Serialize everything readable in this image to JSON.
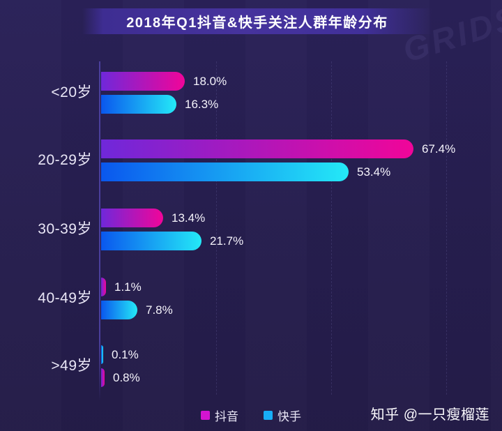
{
  "title": "2018年Q1抖音&快手关注人群年龄分布",
  "watermarks": {
    "grids": "GRIDS",
    "zhihu": "知乎 @一只瘦榴莲"
  },
  "colors": {
    "background_top": "#2a2158",
    "background_bottom": "#241c48",
    "title_banner": "#46339d",
    "axis_line": "#4b3f9c",
    "category_text": "#e9e6f6",
    "value_text": "#f5f3fb",
    "title_text": "#ffffff"
  },
  "series_colors": {
    "douyin": {
      "label": "抖音",
      "gradient_from": "#6f28da",
      "gradient_to": "#f10599",
      "legend_swatch": "#d414d0"
    },
    "kuaishou": {
      "label": "快手",
      "gradient_from": "#0a57ee",
      "gradient_to": "#24e9f7",
      "legend_swatch": "#18aef7"
    }
  },
  "chart_data": {
    "type": "bar",
    "orientation": "horizontal",
    "title": "2018年Q1抖音&快手关注人群年龄分布",
    "categories": [
      "<20岁",
      "20-29岁",
      "30-39岁",
      "40-49岁",
      ">49岁"
    ],
    "series": [
      {
        "name": "抖音",
        "values": [
          18.0,
          67.4,
          13.4,
          1.1,
          0.8
        ]
      },
      {
        "name": "快手",
        "values": [
          16.3,
          53.4,
          21.7,
          7.8,
          0.1
        ]
      }
    ],
    "value_suffix": "%",
    "xlim": [
      0,
      100
    ],
    "legend_position": "bottom-center",
    "grid": "faint dashed vertical gridlines, no x-axis tick labels",
    "groups": [
      {
        "label": "<20岁",
        "bars": [
          {
            "series": "douyin",
            "value": 18.0,
            "display": "18.0%"
          },
          {
            "series": "kuaishou",
            "value": 16.3,
            "display": "16.3%"
          }
        ]
      },
      {
        "label": "20-29岁",
        "bars": [
          {
            "series": "douyin",
            "value": 67.4,
            "display": "67.4%"
          },
          {
            "series": "kuaishou",
            "value": 53.4,
            "display": "53.4%"
          }
        ]
      },
      {
        "label": "30-39岁",
        "bars": [
          {
            "series": "douyin",
            "value": 13.4,
            "display": "13.4%"
          },
          {
            "series": "kuaishou",
            "value": 21.7,
            "display": "21.7%"
          }
        ]
      },
      {
        "label": "40-49岁",
        "bars": [
          {
            "series": "douyin",
            "value": 1.1,
            "display": "1.1%"
          },
          {
            "series": "kuaishou",
            "value": 7.8,
            "display": "7.8%"
          }
        ]
      },
      {
        "label": ">49岁",
        "bars": [
          {
            "series": "kuaishou",
            "value": 0.1,
            "display": "0.1%"
          },
          {
            "series": "douyin",
            "value": 0.8,
            "display": "0.8%"
          }
        ],
        "render_note": "bar order swapped in source image: blue bar drawn above pink bar"
      }
    ]
  }
}
